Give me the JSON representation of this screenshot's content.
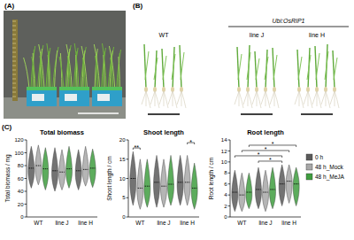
{
  "figure": {
    "panel_a": "(A)",
    "panel_b": "(B)",
    "panel_c": "(C)",
    "b_groups": [
      "WT",
      "line J",
      "line H"
    ],
    "b_construct": "Ubi:OsRIP1"
  },
  "chart_data": [
    {
      "type": "violin",
      "title": "Total biomass",
      "y_label": "Total biomass / mg",
      "categories": [
        "WT",
        "line J",
        "line H"
      ],
      "ylim": [
        0,
        120
      ],
      "yticks": [
        0,
        20,
        40,
        60,
        80,
        100,
        120
      ],
      "series": [
        {
          "color": "#5a5a5a",
          "values": [
            76,
            72,
            72
          ],
          "min": [
            45,
            40,
            42
          ],
          "max": [
            110,
            108,
            105
          ]
        },
        {
          "color": "#a8a8a8",
          "values": [
            80,
            70,
            74
          ],
          "min": [
            50,
            42,
            48
          ],
          "max": [
            112,
            105,
            110
          ]
        },
        {
          "color": "#3f9e3f",
          "values": [
            75,
            75,
            76
          ],
          "min": [
            42,
            45,
            46
          ],
          "max": [
            108,
            110,
            106
          ]
        }
      ]
    },
    {
      "type": "violin",
      "title": "Shoot length",
      "y_label": "Shoot length / cm",
      "categories": [
        "WT",
        "line J",
        "line H"
      ],
      "ylim": [
        0,
        20
      ],
      "yticks": [
        0,
        5,
        10,
        15,
        20
      ],
      "series": [
        {
          "color": "#5a5a5a",
          "values": [
            10,
            9,
            9
          ],
          "min": [
            3,
            2.5,
            3
          ],
          "max": [
            17,
            16,
            16
          ]
        },
        {
          "color": "#a8a8a8",
          "values": [
            7.5,
            8,
            9
          ],
          "min": [
            2,
            2.5,
            3
          ],
          "max": [
            15,
            15,
            16
          ]
        },
        {
          "color": "#3f9e3f",
          "values": [
            8,
            8.5,
            7.5
          ],
          "min": [
            2.5,
            3,
            2
          ],
          "max": [
            15,
            16,
            14
          ]
        }
      ],
      "annotations": [
        {
          "text": "**",
          "from": {
            "category": "WT",
            "series": 0
          },
          "to": {
            "category": "WT",
            "series": 1
          }
        },
        {
          "text": "*",
          "from": {
            "category": "line H",
            "series": 1
          },
          "to": {
            "category": "line H",
            "series": 2
          }
        }
      ]
    },
    {
      "type": "violin",
      "title": "Root length",
      "y_label": "Root length / cm",
      "categories": [
        "WT",
        "line J",
        "line H"
      ],
      "ylim": [
        0,
        14
      ],
      "yticks": [
        0,
        2,
        4,
        6,
        8,
        10,
        12,
        14
      ],
      "legend": "right",
      "series": [
        {
          "name": "0 h",
          "color": "#5a5a5a",
          "values": [
            4.5,
            5,
            6
          ],
          "min": [
            1,
            1.5,
            2
          ],
          "max": [
            8.5,
            9,
            9.5
          ]
        },
        {
          "name": "48 h_Mock",
          "color": "#a8a8a8",
          "values": [
            4,
            4.5,
            6.5
          ],
          "min": [
            1,
            1,
            2.5
          ],
          "max": [
            8,
            8.5,
            9.5
          ]
        },
        {
          "name": "48 h_MeJA",
          "color": "#3f9e3f",
          "values": [
            4.5,
            5,
            6
          ],
          "min": [
            1.5,
            1.5,
            2
          ],
          "max": [
            8,
            9,
            9
          ]
        }
      ],
      "annotations": [
        {
          "text": "*",
          "from": {
            "category": "line J",
            "series": 0
          },
          "to": {
            "category": "line H",
            "series": 0
          }
        },
        {
          "text": "*",
          "from": {
            "category": "WT",
            "series": 0
          },
          "to": {
            "category": "line H",
            "series": 0
          }
        },
        {
          "text": "*",
          "from": {
            "category": "WT",
            "series": 1
          },
          "to": {
            "category": "line H",
            "series": 1
          }
        },
        {
          "text": "*",
          "from": {
            "category": "WT",
            "series": 2
          },
          "to": {
            "category": "line H",
            "series": 2
          }
        }
      ]
    }
  ]
}
